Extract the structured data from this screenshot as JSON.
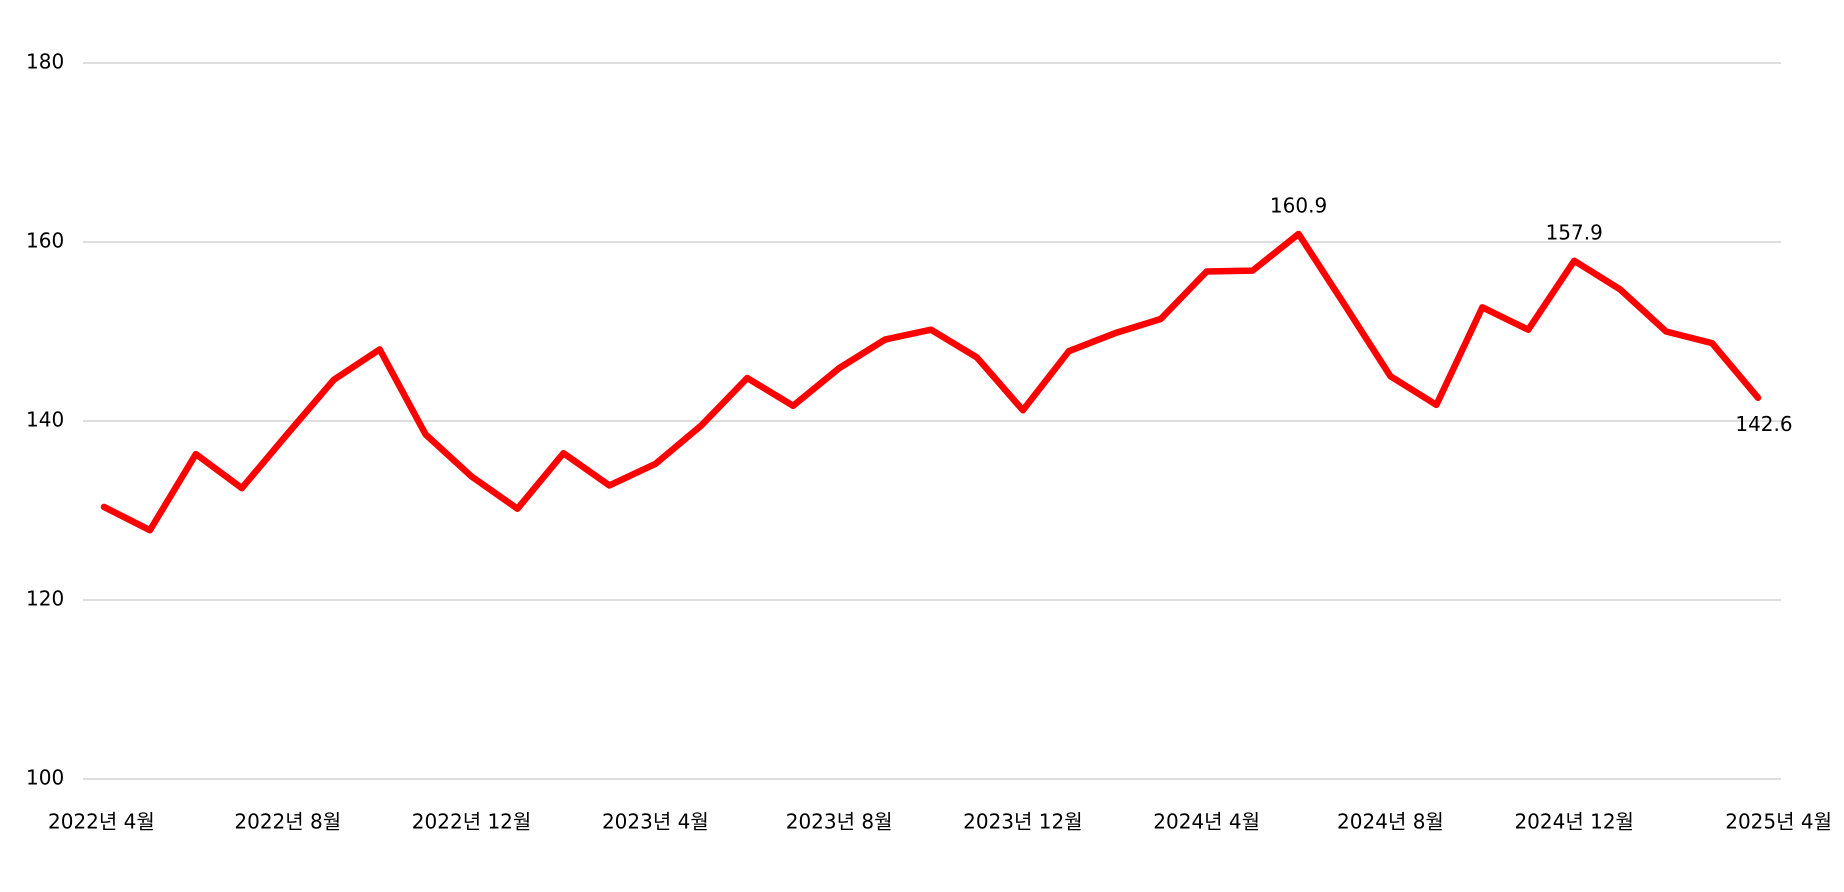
{
  "chart_data": {
    "type": "line",
    "categories": [
      "2022년 4월",
      null,
      null,
      null,
      "2022년 8월",
      null,
      null,
      null,
      "2022년 12월",
      null,
      null,
      null,
      "2023년 4월",
      null,
      null,
      null,
      "2023년 8월",
      null,
      null,
      null,
      "2023년 12월",
      null,
      null,
      null,
      "2024년 4월",
      null,
      null,
      null,
      "2024년 8월",
      null,
      null,
      null,
      "2024년 12월",
      null,
      null,
      null,
      "2025년 4월"
    ],
    "series": [
      {
        "color": "#ff0000",
        "values": [
          130.4,
          127.8,
          136.3,
          132.5,
          138.6,
          144.6,
          148.0,
          138.5,
          133.8,
          130.2,
          136.4,
          132.8,
          135.2,
          139.5,
          144.8,
          141.7,
          145.9,
          149.1,
          150.2,
          147.1,
          141.2,
          147.8,
          149.8,
          151.4,
          156.7,
          156.8,
          160.9,
          153.0,
          145.0,
          141.8,
          152.7,
          150.2,
          157.9,
          154.7,
          150.0,
          148.7,
          142.6
        ],
        "value_labels": [
          null,
          null,
          null,
          null,
          null,
          null,
          null,
          null,
          null,
          null,
          null,
          null,
          null,
          null,
          null,
          null,
          null,
          null,
          null,
          null,
          null,
          null,
          null,
          null,
          null,
          null,
          "160.9",
          null,
          null,
          null,
          null,
          null,
          "157.9",
          null,
          null,
          null,
          "142.6"
        ]
      }
    ],
    "ylim": [
      100,
      180
    ],
    "yticks": [
      100,
      120,
      140,
      160,
      180
    ],
    "grid": true
  }
}
